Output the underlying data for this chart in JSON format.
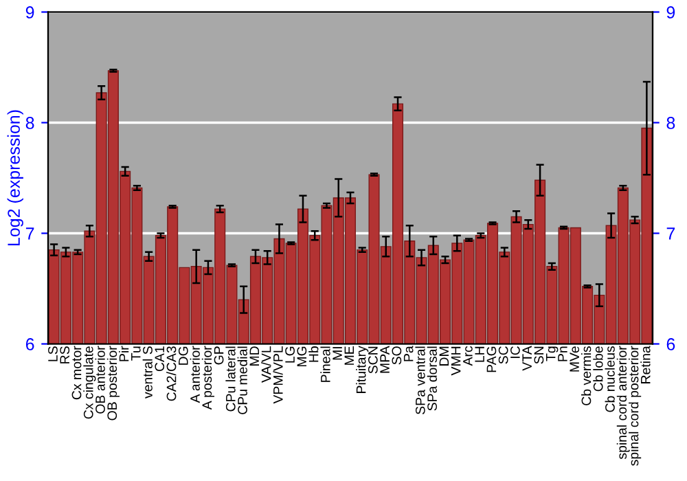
{
  "chart_data": {
    "type": "bar",
    "ylabel": "Log2 (expression)",
    "categories": [
      "LS",
      "RS",
      "Cx motor",
      "Cx cingulate",
      "OB anterior",
      "OB posterior",
      "Pir",
      "Tu",
      "ventral S",
      "CA1",
      "CA2/CA3",
      "DG",
      "A anterior",
      "A posterior",
      "GP",
      "CPu lateral",
      "CPu medial",
      "MD",
      "VA/VL",
      "VPM/VPL",
      "LG",
      "MG",
      "Hb",
      "Pineal",
      "MI",
      "ME",
      "Pituitary",
      "SCN",
      "MPA",
      "SO",
      "Pa",
      "SPa ventral",
      "SPa dorsal",
      "DM",
      "VMH",
      "Arc",
      "LH",
      "PAG",
      "SC",
      "IC",
      "VTA",
      "SN",
      "Tg",
      "Pn",
      "MVe",
      "Cb vermis",
      "Cb lobe",
      "Cb nucleus",
      "spinal cord anterior",
      "spinal cord posterior",
      "Retina"
    ],
    "values": [
      6.85,
      6.83,
      6.83,
      7.02,
      8.27,
      8.47,
      7.56,
      7.41,
      6.79,
      6.98,
      7.24,
      6.69,
      6.7,
      6.69,
      7.22,
      6.71,
      6.4,
      6.79,
      6.78,
      6.95,
      6.91,
      7.22,
      6.98,
      7.25,
      7.32,
      7.32,
      6.85,
      7.53,
      6.88,
      8.17,
      6.93,
      6.78,
      6.89,
      6.76,
      6.91,
      6.94,
      6.98,
      7.09,
      6.83,
      7.15,
      7.08,
      7.48,
      6.7,
      7.05,
      7.05,
      6.52,
      6.44,
      7.07,
      7.41,
      7.12,
      7.95
    ],
    "errors": [
      0.05,
      0.04,
      0.02,
      0.05,
      0.06,
      0.01,
      0.04,
      0.02,
      0.04,
      0.02,
      0.01,
      null,
      0.15,
      0.06,
      0.03,
      0.01,
      0.12,
      0.06,
      0.06,
      0.13,
      0.01,
      0.12,
      0.04,
      0.02,
      0.17,
      0.05,
      0.02,
      0.01,
      0.09,
      0.06,
      0.14,
      0.07,
      0.08,
      0.03,
      0.07,
      0.01,
      0.02,
      0.01,
      0.04,
      0.05,
      0.04,
      0.14,
      0.03,
      0.01,
      null,
      0.01,
      0.1,
      0.11,
      0.02,
      0.03,
      0.42
    ],
    "color": "#b33333",
    "ylim": [
      6,
      9
    ],
    "yticks": [
      6,
      7,
      8,
      9
    ],
    "y2lim": [
      6,
      9
    ],
    "y2ticks": [
      6,
      7,
      8,
      9
    ],
    "grid": "y"
  }
}
